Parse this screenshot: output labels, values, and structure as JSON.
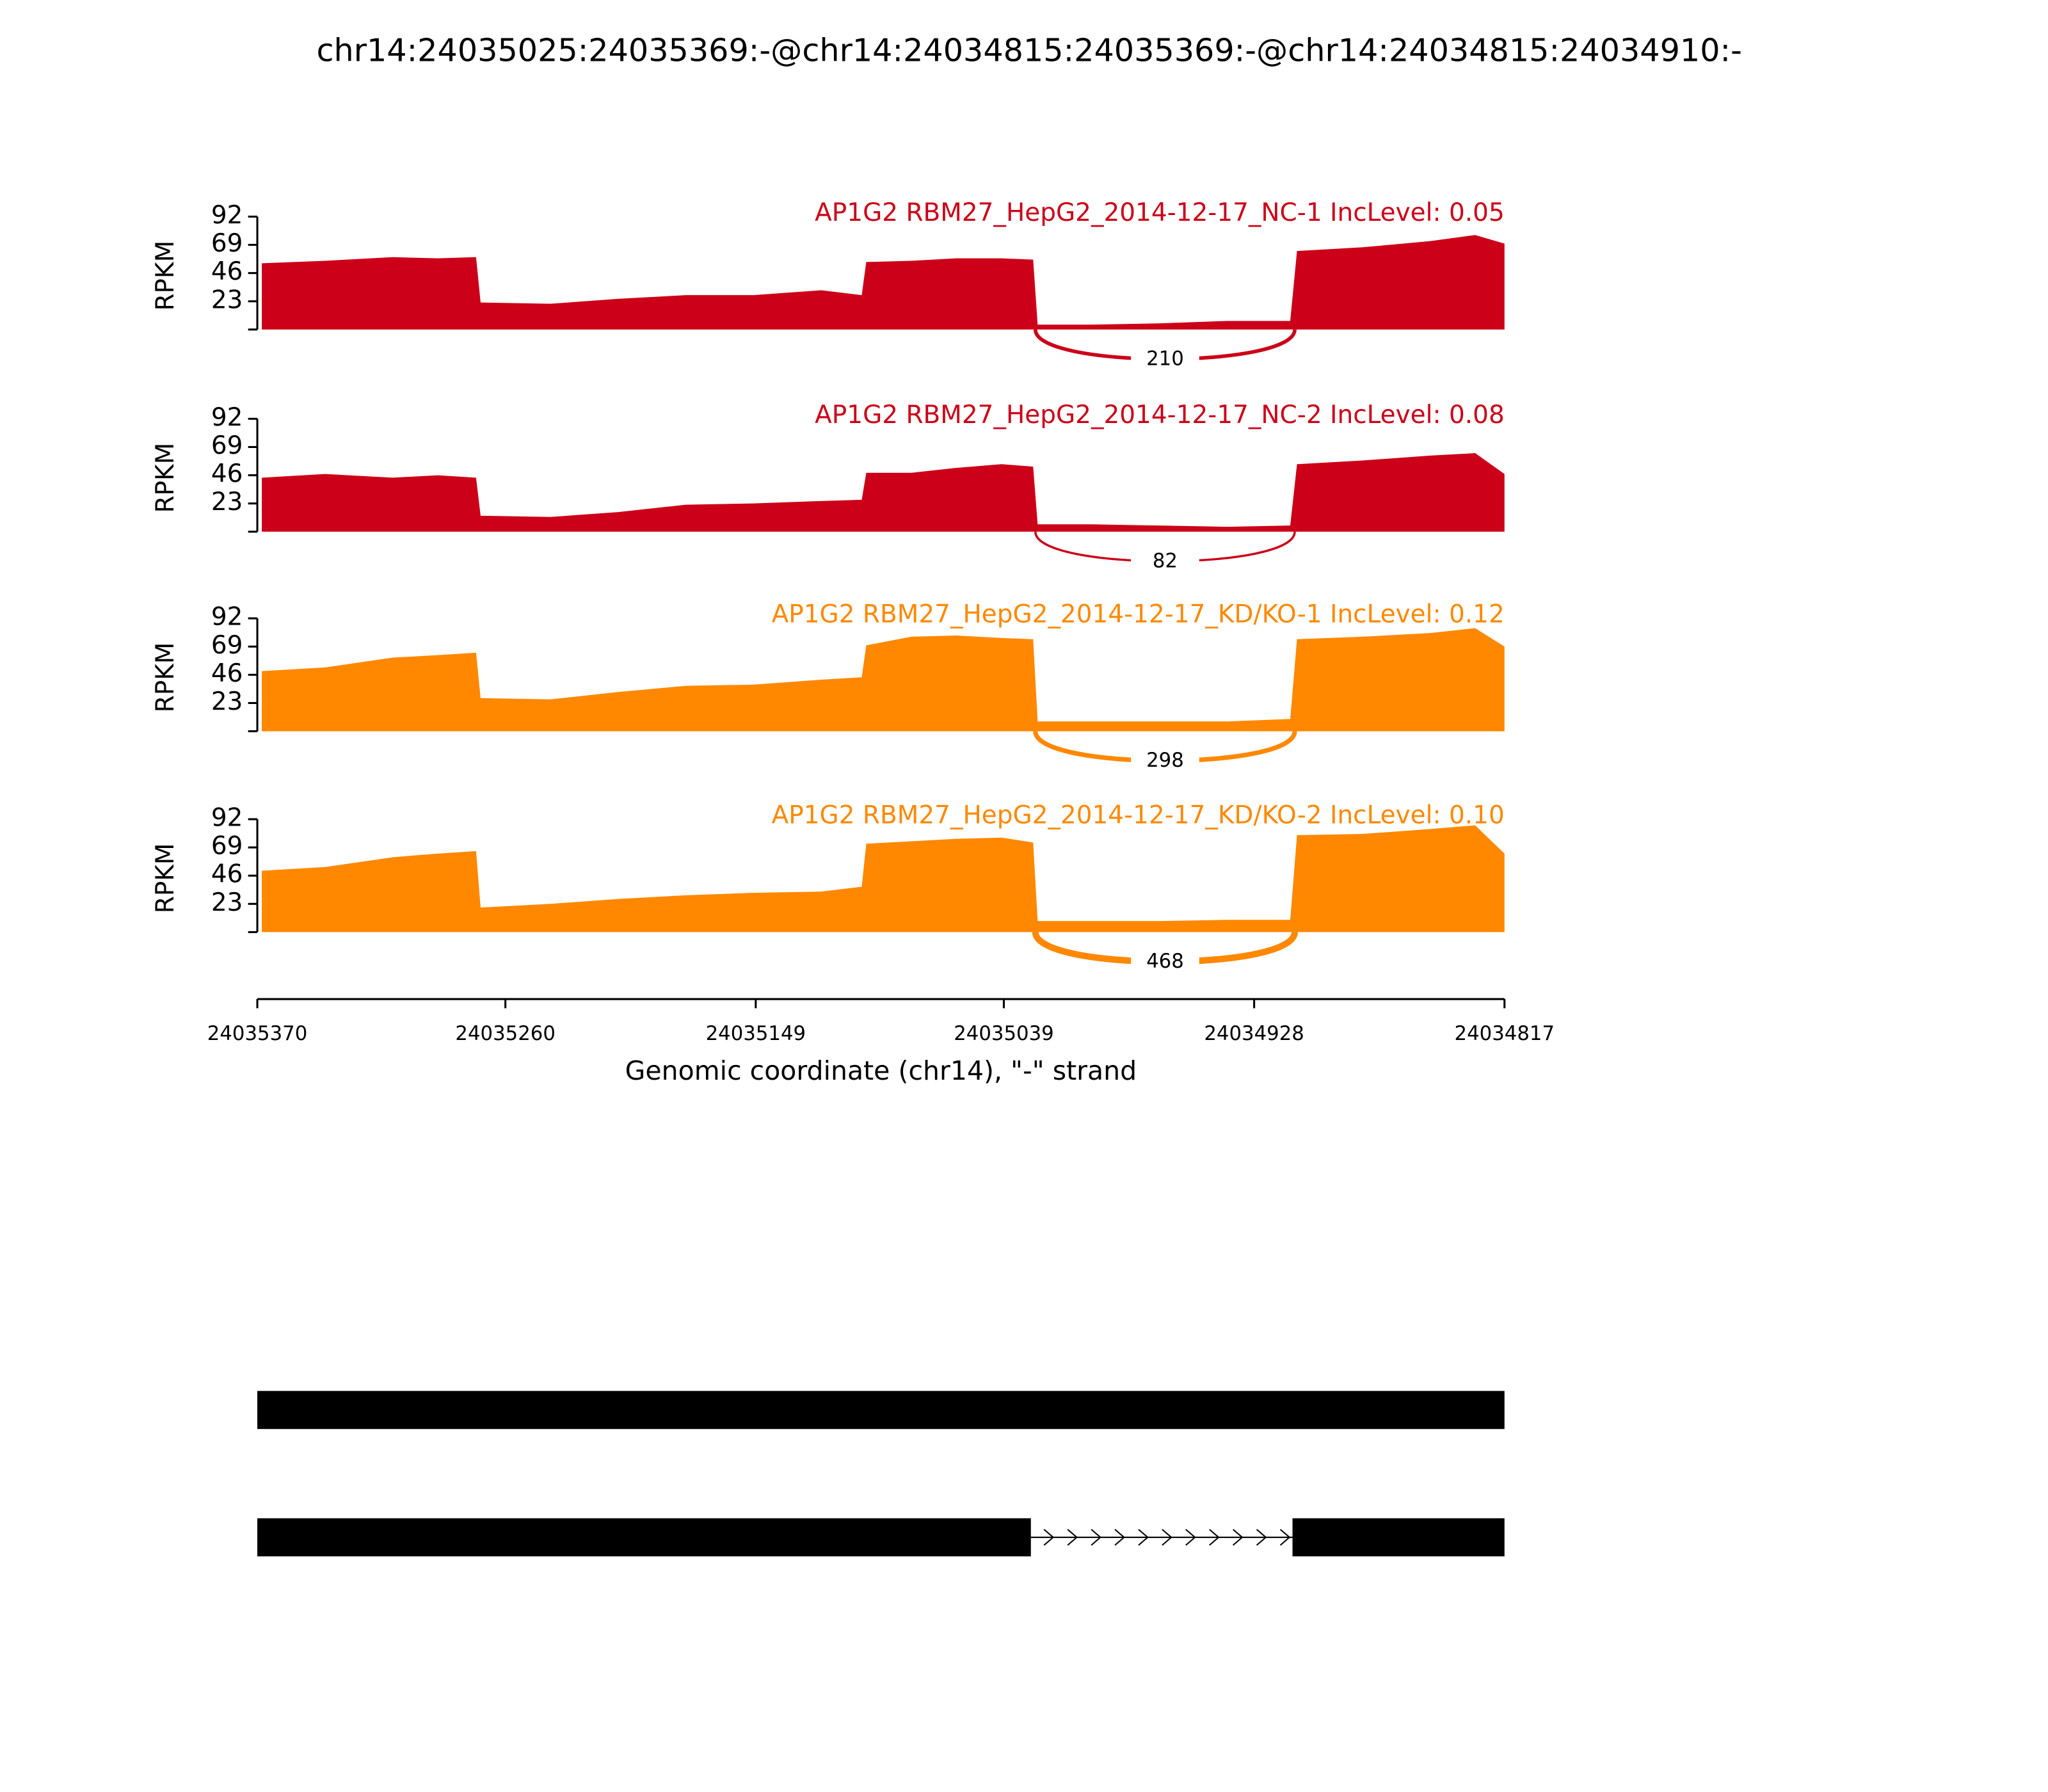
{
  "title": "chr14:24035025:24035369:-@chr14:24034815:24035369:-@chr14:24034815:24034910:-",
  "chart_data": [
    {
      "type": "area",
      "title": "AP1G2 RBM27_HepG2_2014-12-17_NC-1 IncLevel: 0.05",
      "ylabel": "RPKM",
      "color": "#cc0018",
      "xlim": [
        24035370,
        24034817
      ],
      "ylim": [
        0,
        92
      ],
      "yticks": [
        23,
        46,
        69,
        92
      ],
      "x": [
        24035368,
        24035340,
        24035310,
        24035290,
        24035273,
        24035271,
        24035240,
        24035210,
        24035180,
        24035150,
        24035120,
        24035102,
        24035100,
        24035080,
        24035060,
        24035040,
        24035026,
        24035024,
        24035000,
        24034970,
        24034940,
        24034912,
        24034909,
        24034880,
        24034850,
        24034830,
        24034817
      ],
      "values": [
        54,
        56,
        59,
        58,
        59,
        22,
        21,
        25,
        28,
        28,
        32,
        28,
        55,
        56,
        58,
        58,
        57,
        4,
        4,
        5,
        7,
        7,
        64,
        67,
        72,
        77,
        70
      ],
      "junctions": [
        {
          "start": 24035025,
          "end": 24034910,
          "count": 210
        }
      ]
    },
    {
      "type": "area",
      "title": "AP1G2 RBM27_HepG2_2014-12-17_NC-2 IncLevel: 0.08",
      "ylabel": "RPKM",
      "color": "#cc0018",
      "xlim": [
        24035370,
        24034817
      ],
      "ylim": [
        0,
        92
      ],
      "yticks": [
        23,
        46,
        69,
        92
      ],
      "x": [
        24035368,
        24035340,
        24035310,
        24035290,
        24035273,
        24035271,
        24035240,
        24035210,
        24035180,
        24035150,
        24035120,
        24035102,
        24035100,
        24035080,
        24035060,
        24035040,
        24035026,
        24035024,
        24035000,
        24034970,
        24034940,
        24034912,
        24034909,
        24034880,
        24034850,
        24034830,
        24034817
      ],
      "values": [
        44,
        47,
        44,
        46,
        44,
        13,
        12,
        16,
        22,
        23,
        25,
        26,
        48,
        48,
        52,
        55,
        53,
        6,
        6,
        5,
        4,
        5,
        55,
        58,
        62,
        64,
        47
      ],
      "junctions": [
        {
          "start": 24035025,
          "end": 24034910,
          "count": 82
        }
      ]
    },
    {
      "type": "area",
      "title": "AP1G2 RBM27_HepG2_2014-12-17_KD/KO-1 IncLevel: 0.12",
      "ylabel": "RPKM",
      "color": "#ff8800",
      "xlim": [
        24035370,
        24034817
      ],
      "ylim": [
        0,
        92
      ],
      "yticks": [
        23,
        46,
        69,
        92
      ],
      "x": [
        24035368,
        24035340,
        24035310,
        24035290,
        24035273,
        24035271,
        24035240,
        24035210,
        24035180,
        24035150,
        24035120,
        24035102,
        24035100,
        24035080,
        24035060,
        24035040,
        24035026,
        24035024,
        24035000,
        24034970,
        24034940,
        24034912,
        24034909,
        24034880,
        24034850,
        24034830,
        24034817
      ],
      "values": [
        49,
        52,
        60,
        62,
        64,
        27,
        26,
        32,
        37,
        38,
        42,
        44,
        70,
        77,
        78,
        76,
        75,
        8,
        8,
        8,
        8,
        10,
        75,
        77,
        80,
        84,
        69
      ],
      "junctions": [
        {
          "start": 24035025,
          "end": 24034910,
          "count": 298
        }
      ]
    },
    {
      "type": "area",
      "title": "AP1G2 RBM27_HepG2_2014-12-17_KD/KO-2 IncLevel: 0.10",
      "ylabel": "RPKM",
      "color": "#ff8800",
      "xlim": [
        24035370,
        24034817
      ],
      "ylim": [
        0,
        92
      ],
      "yticks": [
        23,
        46,
        69,
        92
      ],
      "x": [
        24035368,
        24035340,
        24035310,
        24035290,
        24035273,
        24035271,
        24035240,
        24035210,
        24035180,
        24035150,
        24035120,
        24035102,
        24035100,
        24035080,
        24035060,
        24035040,
        24035026,
        24035024,
        24035000,
        24034970,
        24034940,
        24034912,
        24034909,
        24034880,
        24034850,
        24034830,
        24034817
      ],
      "values": [
        50,
        53,
        61,
        64,
        66,
        20,
        23,
        27,
        30,
        32,
        33,
        37,
        72,
        74,
        76,
        77,
        73,
        9,
        9,
        9,
        10,
        10,
        79,
        80,
        84,
        87,
        64
      ],
      "junctions": [
        {
          "start": 24035025,
          "end": 24034910,
          "count": 468
        }
      ],
      "xticks": [
        24035370,
        24035260,
        24035149,
        24035039,
        24034928,
        24034817
      ],
      "xlabel": "Genomic coordinate (chr14), \"-\" strand"
    }
  ],
  "gene_model": {
    "xlim": [
      24035370,
      24034817
    ],
    "transcripts": [
      {
        "exons": [
          [
            24035370,
            24034817
          ]
        ]
      },
      {
        "exons": [
          [
            24035370,
            24035027
          ],
          [
            24034911,
            24034817
          ]
        ]
      }
    ]
  }
}
